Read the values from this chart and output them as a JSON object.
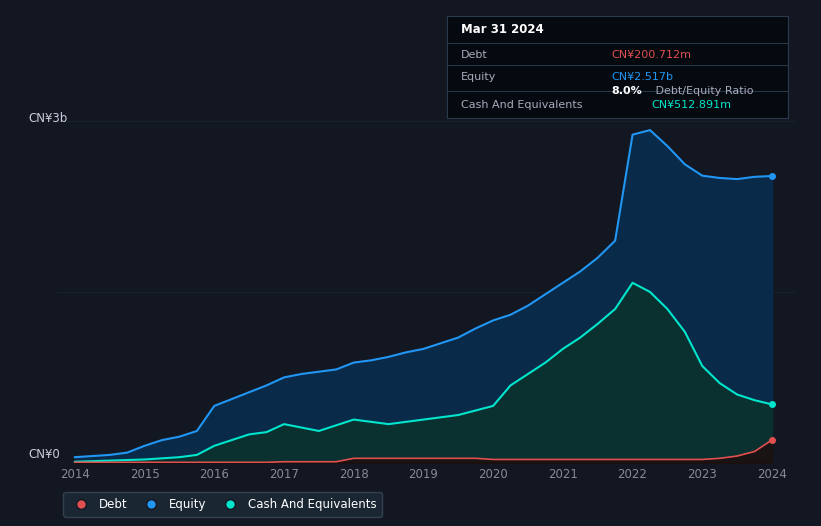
{
  "background_color": "#131722",
  "plot_bg_color": "#131722",
  "title": "Mar 31 2024",
  "ylabel_top": "CN¥3b",
  "ylabel_bottom": "CN¥0",
  "x_ticks": [
    2014,
    2015,
    2016,
    2017,
    2018,
    2019,
    2020,
    2021,
    2022,
    2023,
    2024
  ],
  "ylim": [
    0,
    3.0
  ],
  "debt_color": "#e05050",
  "equity_color": "#2196f3",
  "cash_color": "#00e5cc",
  "equity_fill_color": "#0a2a4a",
  "cash_fill_color": "#0a3030",
  "legend_bg": "#1e2a38",
  "legend_edge": "#3a4a5a",
  "tooltip_bg": "#050a10",
  "years": [
    2014.0,
    2014.25,
    2014.5,
    2014.75,
    2015.0,
    2015.25,
    2015.5,
    2015.75,
    2016.0,
    2016.25,
    2016.5,
    2016.75,
    2017.0,
    2017.25,
    2017.5,
    2017.75,
    2018.0,
    2018.25,
    2018.5,
    2018.75,
    2019.0,
    2019.25,
    2019.5,
    2019.75,
    2020.0,
    2020.25,
    2020.5,
    2020.75,
    2021.0,
    2021.25,
    2021.5,
    2021.75,
    2022.0,
    2022.25,
    2022.5,
    2022.75,
    2023.0,
    2023.25,
    2023.5,
    2023.75,
    2024.0
  ],
  "equity": [
    0.05,
    0.06,
    0.07,
    0.09,
    0.15,
    0.2,
    0.23,
    0.28,
    0.5,
    0.56,
    0.62,
    0.68,
    0.75,
    0.78,
    0.8,
    0.82,
    0.88,
    0.9,
    0.93,
    0.97,
    1.0,
    1.05,
    1.1,
    1.18,
    1.25,
    1.3,
    1.38,
    1.48,
    1.58,
    1.68,
    1.8,
    1.95,
    2.88,
    2.92,
    2.78,
    2.62,
    2.52,
    2.5,
    2.49,
    2.51,
    2.517
  ],
  "cash": [
    0.01,
    0.015,
    0.02,
    0.025,
    0.03,
    0.04,
    0.05,
    0.07,
    0.15,
    0.2,
    0.25,
    0.27,
    0.34,
    0.31,
    0.28,
    0.33,
    0.38,
    0.36,
    0.34,
    0.36,
    0.38,
    0.4,
    0.42,
    0.46,
    0.5,
    0.68,
    0.78,
    0.88,
    1.0,
    1.1,
    1.22,
    1.35,
    1.58,
    1.5,
    1.35,
    1.15,
    0.85,
    0.7,
    0.6,
    0.55,
    0.513
  ],
  "debt": [
    0.005,
    0.005,
    0.005,
    0.005,
    0.005,
    0.005,
    0.005,
    0.005,
    0.005,
    0.005,
    0.005,
    0.005,
    0.01,
    0.01,
    0.01,
    0.01,
    0.04,
    0.04,
    0.04,
    0.04,
    0.04,
    0.04,
    0.04,
    0.04,
    0.03,
    0.03,
    0.03,
    0.03,
    0.03,
    0.03,
    0.03,
    0.03,
    0.03,
    0.03,
    0.03,
    0.03,
    0.03,
    0.04,
    0.06,
    0.1,
    0.201
  ]
}
